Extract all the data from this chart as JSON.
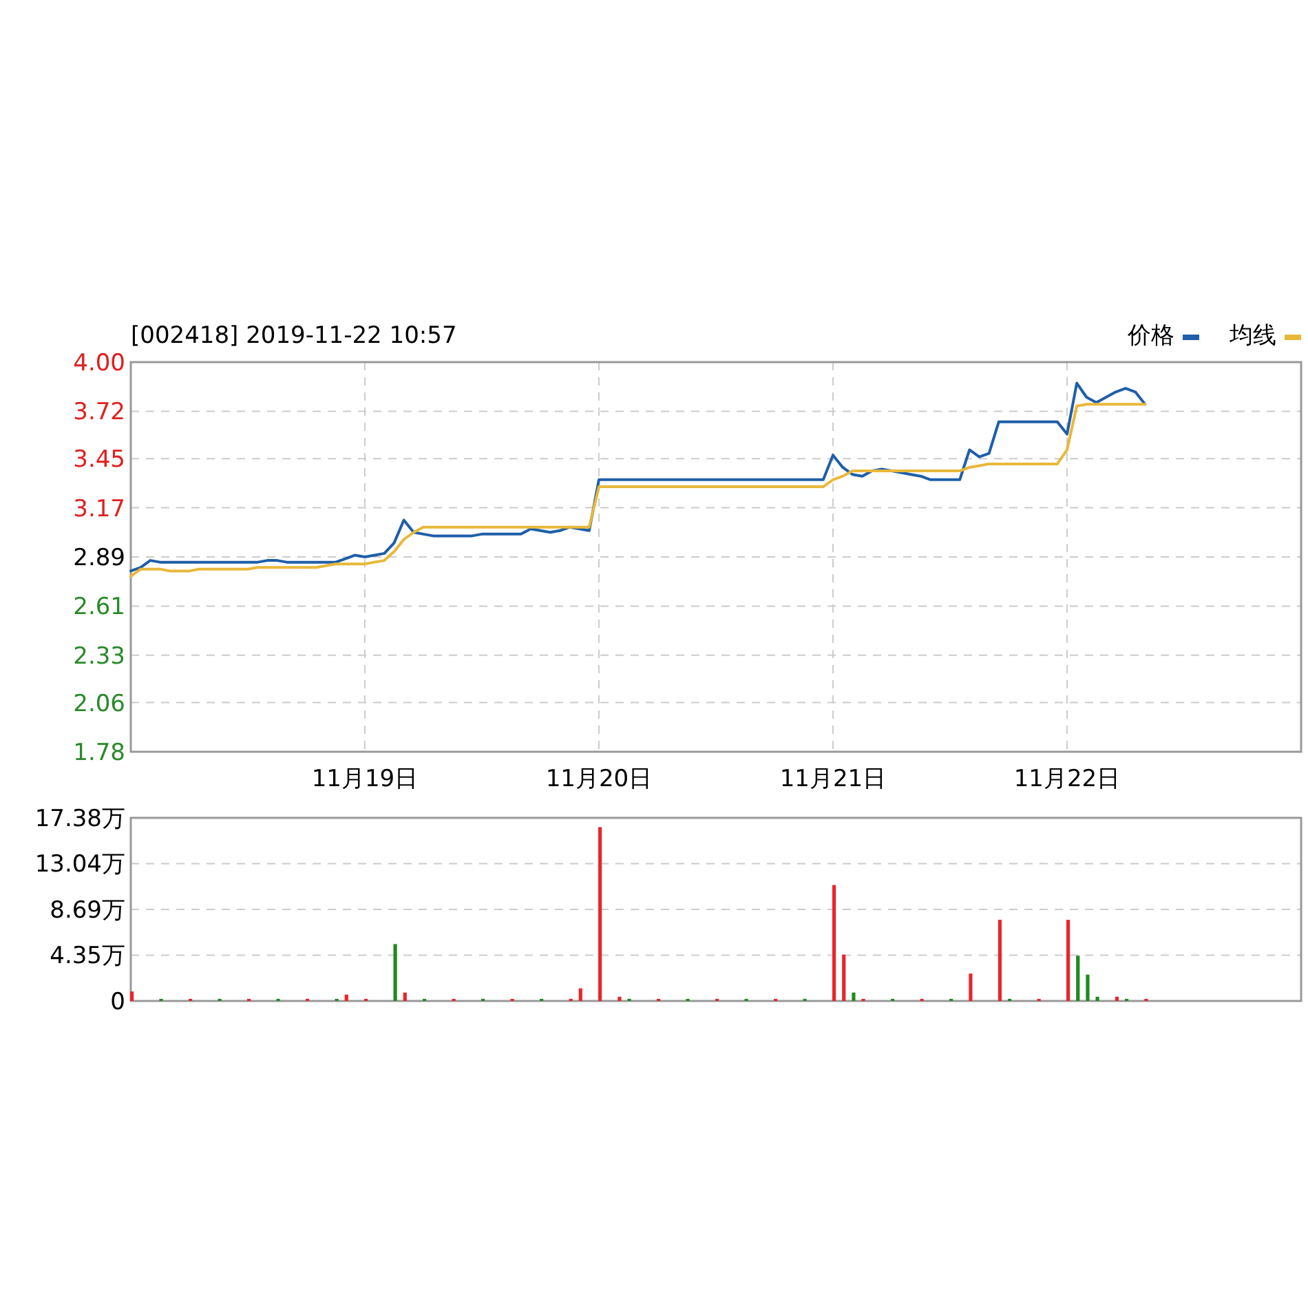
{
  "chart_data": [
    {
      "type": "line",
      "title": "[002418] 2019-11-22 10:57",
      "legend": "top right",
      "grid": true,
      "categories": [
        null,
        null,
        null,
        null,
        null,
        null,
        null,
        null,
        null,
        null,
        null,
        null,
        null,
        null,
        null,
        null,
        null,
        null,
        null,
        null,
        null,
        null,
        null,
        null,
        "11月19日",
        null,
        null,
        null,
        null,
        null,
        null,
        null,
        null,
        null,
        null,
        null,
        null,
        null,
        null,
        null,
        null,
        null,
        null,
        null,
        null,
        null,
        null,
        null,
        "11月20日",
        null,
        null,
        null,
        null,
        null,
        null,
        null,
        null,
        null,
        null,
        null,
        null,
        null,
        null,
        null,
        null,
        null,
        null,
        null,
        null,
        null,
        null,
        null,
        "11月21日",
        null,
        null,
        null,
        null,
        null,
        null,
        null,
        null,
        null,
        null,
        null,
        null,
        null,
        null,
        null,
        null,
        null,
        null,
        null,
        null,
        null,
        null,
        null,
        "11月22日",
        null,
        null,
        null,
        null,
        null,
        null,
        null,
        null,
        null,
        null,
        null,
        null,
        null,
        null,
        null,
        null,
        null,
        null,
        null,
        null,
        null,
        null,
        null
      ],
      "ylim": [
        1.78,
        4.0
      ],
      "yticks": [
        {
          "value": 1.78,
          "label": "1.78"
        },
        {
          "value": 2.06,
          "label": "2.06"
        },
        2.33,
        2.61,
        2.89,
        3.17,
        3.45,
        3.72,
        {
          "value": 4.0,
          "label": "4.00"
        }
      ],
      "series": [
        {
          "name": "价格",
          "color": "#1f5ea8",
          "values": [
            2.81,
            2.83,
            2.87,
            2.86,
            2.86,
            2.86,
            2.86,
            2.86,
            2.86,
            2.86,
            2.86,
            2.86,
            2.86,
            2.86,
            2.87,
            2.87,
            2.86,
            2.86,
            2.86,
            2.86,
            2.86,
            2.86,
            2.88,
            2.9,
            2.89,
            2.9,
            2.91,
            2.97,
            3.1,
            3.03,
            3.02,
            3.01,
            3.01,
            3.01,
            3.01,
            3.01,
            3.02,
            3.02,
            3.02,
            3.02,
            3.02,
            3.05,
            3.04,
            3.03,
            3.04,
            3.06,
            3.05,
            3.04,
            3.33,
            3.33,
            3.33,
            3.33,
            3.33,
            3.33,
            3.33,
            3.33,
            3.33,
            3.33,
            3.33,
            3.33,
            3.33,
            3.33,
            3.33,
            3.33,
            3.33,
            3.33,
            3.33,
            3.33,
            3.33,
            3.33,
            3.33,
            3.33,
            3.47,
            3.4,
            3.36,
            3.35,
            3.38,
            3.39,
            3.38,
            3.37,
            3.36,
            3.35,
            3.33,
            3.33,
            3.33,
            3.33,
            3.5,
            3.46,
            3.48,
            3.66,
            3.66,
            3.66,
            3.66,
            3.66,
            3.66,
            3.66,
            3.59,
            3.88,
            3.8,
            3.77,
            3.8,
            3.83,
            3.85,
            3.83,
            3.76,
            null,
            null,
            null,
            null,
            null,
            null,
            null,
            null,
            null,
            null,
            null,
            null,
            null,
            null,
            null
          ]
        },
        {
          "name": "均线",
          "color": "#e8b83a",
          "values": [
            2.78,
            2.82,
            2.82,
            2.82,
            2.81,
            2.81,
            2.81,
            2.82,
            2.82,
            2.82,
            2.82,
            2.82,
            2.82,
            2.83,
            2.83,
            2.83,
            2.83,
            2.83,
            2.83,
            2.83,
            2.84,
            2.85,
            2.85,
            2.85,
            2.85,
            2.86,
            2.87,
            2.92,
            2.99,
            3.03,
            3.06,
            3.06,
            3.06,
            3.06,
            3.06,
            3.06,
            3.06,
            3.06,
            3.06,
            3.06,
            3.06,
            3.06,
            3.06,
            3.06,
            3.06,
            3.06,
            3.06,
            3.06,
            3.29,
            3.29,
            3.29,
            3.29,
            3.29,
            3.29,
            3.29,
            3.29,
            3.29,
            3.29,
            3.29,
            3.29,
            3.29,
            3.29,
            3.29,
            3.29,
            3.29,
            3.29,
            3.29,
            3.29,
            3.29,
            3.29,
            3.29,
            3.29,
            3.33,
            3.35,
            3.38,
            3.38,
            3.38,
            3.38,
            3.38,
            3.38,
            3.38,
            3.38,
            3.38,
            3.38,
            3.38,
            3.38,
            3.4,
            3.41,
            3.42,
            3.42,
            3.42,
            3.42,
            3.42,
            3.42,
            3.42,
            3.42,
            3.5,
            3.75,
            3.76,
            3.76,
            3.76,
            3.76,
            3.76,
            3.76,
            3.76,
            null,
            null,
            null,
            null,
            null,
            null,
            null,
            null,
            null,
            null,
            null,
            null,
            null,
            null,
            null
          ]
        }
      ]
    },
    {
      "type": "bar",
      "grid": "y",
      "tick_labels": "y",
      "categories": [
        null,
        null,
        null,
        null,
        null,
        null,
        null,
        null,
        null,
        null,
        null,
        null,
        null,
        null,
        null,
        null,
        null,
        null,
        null,
        null,
        null,
        null,
        null,
        null,
        null,
        null,
        null,
        null,
        null,
        null,
        null,
        null,
        null,
        null,
        null,
        null,
        null,
        null,
        null,
        null,
        null,
        null,
        null,
        null,
        null,
        null,
        null,
        null,
        null,
        null,
        null,
        null,
        null,
        null,
        null,
        null,
        null,
        null,
        null,
        null,
        null,
        null,
        null,
        null,
        null,
        null,
        null,
        null,
        null,
        null,
        null,
        null,
        null,
        null,
        null,
        null,
        null,
        null,
        null,
        null,
        null,
        null,
        null,
        null,
        null,
        null,
        null,
        null,
        null,
        null,
        null,
        null,
        null,
        null,
        null,
        null,
        null,
        null,
        null,
        null,
        null,
        null,
        null,
        null,
        null,
        null,
        null,
        null,
        null,
        null,
        null,
        null,
        null,
        null,
        null,
        null,
        null,
        null,
        null,
        null
      ],
      "ylim": [
        0,
        17.38
      ],
      "yticks": [
        0,
        {
          "value": 4.35,
          "label": "4.35万"
        },
        {
          "value": 8.69,
          "label": "8.69万"
        },
        {
          "value": 13.04,
          "label": "13.04万"
        },
        {
          "value": 17.38,
          "label": "17.38万"
        }
      ],
      "values": [
        0.9,
        null,
        null,
        0.2,
        null,
        null,
        0.2,
        null,
        null,
        0.2,
        null,
        null,
        0.2,
        null,
        null,
        0.2,
        null,
        null,
        0.2,
        null,
        null,
        0.2,
        0.6,
        null,
        0.2,
        null,
        null,
        5.4,
        0.8,
        null,
        0.2,
        null,
        null,
        0.2,
        null,
        null,
        0.2,
        null,
        null,
        0.2,
        null,
        null,
        0.2,
        null,
        null,
        0.2,
        1.2,
        null,
        16.5,
        null,
        0.4,
        0.2,
        null,
        null,
        0.2,
        null,
        null,
        0.2,
        null,
        null,
        0.2,
        null,
        null,
        0.2,
        null,
        null,
        0.2,
        null,
        null,
        0.2,
        null,
        null,
        11.0,
        4.4,
        0.8,
        0.2,
        null,
        null,
        0.2,
        null,
        null,
        0.2,
        null,
        null,
        0.2,
        null,
        2.6,
        null,
        null,
        7.7,
        0.2,
        null,
        null,
        0.2,
        null,
        null,
        7.7,
        4.3,
        2.5,
        0.4,
        null,
        0.4,
        0.2,
        null,
        0.2,
        null,
        null,
        null,
        null,
        null,
        null,
        null,
        null,
        null,
        null,
        null,
        null,
        null,
        null,
        null
      ],
      "colors": [
        "#e8262a",
        null,
        null,
        "#1f8a1f",
        null,
        null,
        "#e8262a",
        null,
        null,
        "#1f8a1f",
        null,
        null,
        "#e8262a",
        null,
        null,
        "#1f8a1f",
        null,
        null,
        "#e8262a",
        null,
        null,
        "#1f8a1f",
        "#e8262a",
        null,
        "#e8262a",
        null,
        null,
        "#1f8a1f",
        "#e8262a",
        null,
        "#1f8a1f",
        null,
        null,
        "#e8262a",
        null,
        null,
        "#1f8a1f",
        null,
        null,
        "#e8262a",
        null,
        null,
        "#1f8a1f",
        null,
        null,
        "#e8262a",
        "#e8262a",
        null,
        "#e8262a",
        null,
        "#e8262a",
        "#1f8a1f",
        null,
        null,
        "#e8262a",
        null,
        null,
        "#1f8a1f",
        null,
        null,
        "#e8262a",
        null,
        null,
        "#1f8a1f",
        null,
        null,
        "#e8262a",
        null,
        null,
        "#1f8a1f",
        null,
        null,
        "#e8262a",
        "#e8262a",
        "#1f8a1f",
        "#e8262a",
        null,
        null,
        "#1f8a1f",
        null,
        null,
        "#e8262a",
        null,
        null,
        "#1f8a1f",
        null,
        "#e8262a",
        null,
        null,
        "#e8262a",
        "#1f8a1f",
        null,
        null,
        "#e8262a",
        null,
        null,
        "#e8262a",
        "#1f8a1f",
        "#1f8a1f",
        "#1f8a1f",
        null,
        "#e8262a",
        "#1f8a1f",
        null,
        "#e8262a",
        null,
        null,
        null,
        null,
        null,
        null,
        null,
        null,
        null,
        null,
        null,
        null,
        null,
        null,
        null
      ]
    }
  ]
}
